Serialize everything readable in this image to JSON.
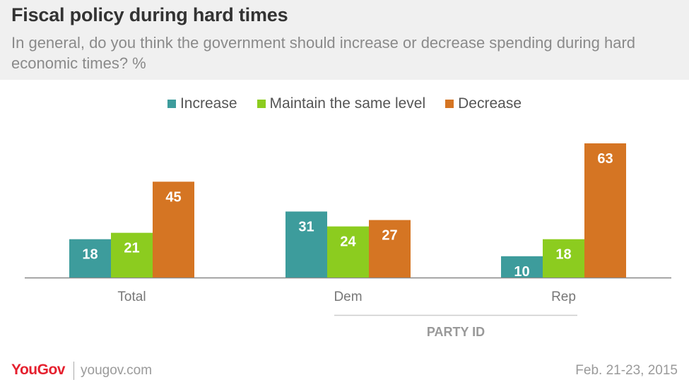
{
  "chart_data": {
    "type": "bar",
    "title": "Fiscal policy during hard times",
    "subtitle": "In general, do you think the government should increase or decrease spending during hard economic times? %",
    "categories": [
      "Total",
      "Dem",
      "Rep"
    ],
    "series": [
      {
        "name": "Increase",
        "color": "#3d9c9c",
        "values": [
          18,
          31,
          10
        ]
      },
      {
        "name": "Maintain the same level",
        "color": "#8ccc1f",
        "values": [
          21,
          24,
          18
        ]
      },
      {
        "name": "Decrease",
        "color": "#d57523",
        "values": [
          45,
          27,
          63
        ]
      }
    ],
    "group_label": "PARTY ID",
    "ylim": [
      0,
      70
    ],
    "legend": "top-center",
    "grid": false
  },
  "footer": {
    "brand": "YouGov",
    "site": "yougov.com",
    "date": "Feb. 21-23, 2015"
  }
}
